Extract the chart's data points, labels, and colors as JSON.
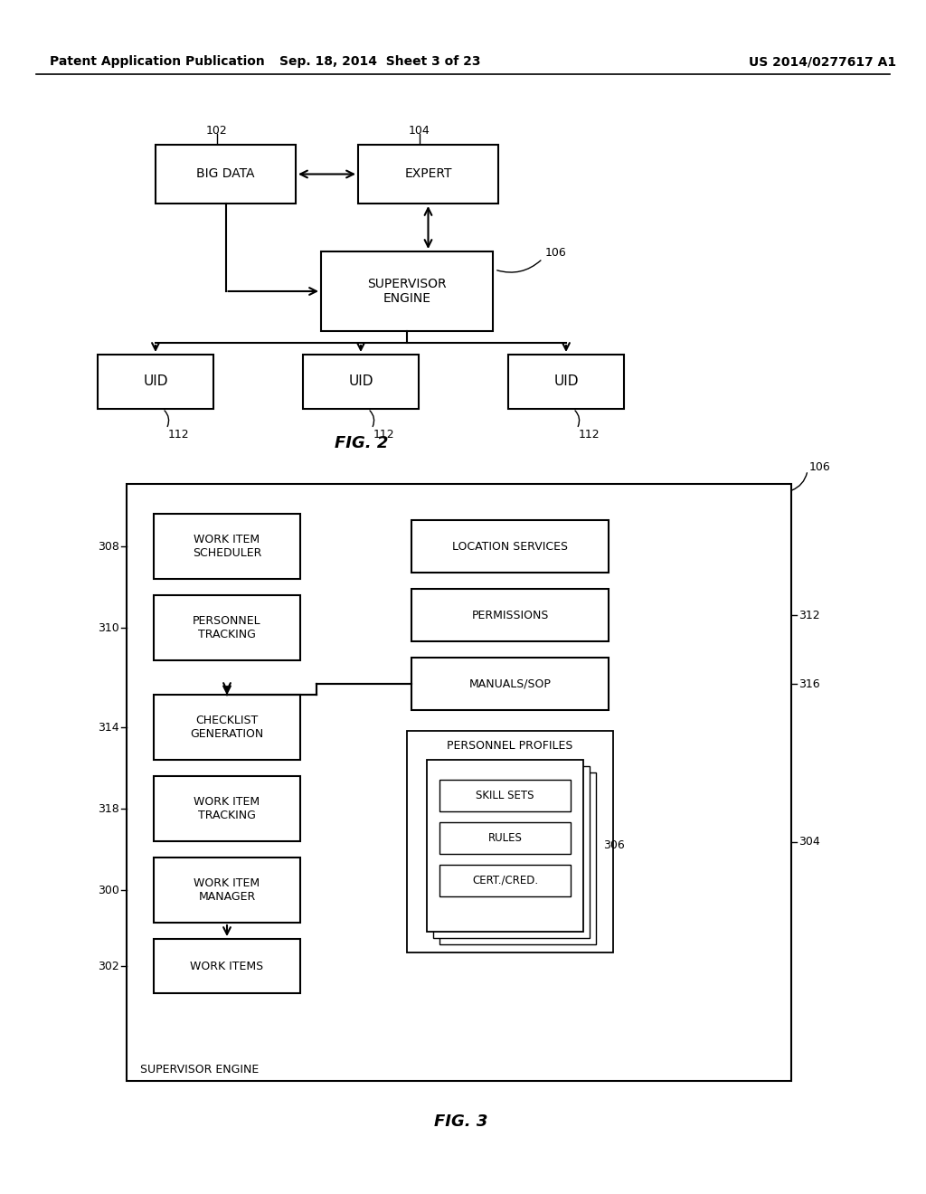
{
  "background_color": "#ffffff",
  "header_left": "Patent Application Publication",
  "header_center": "Sep. 18, 2014  Sheet 3 of 23",
  "header_right": "US 2014/0277617 A1"
}
